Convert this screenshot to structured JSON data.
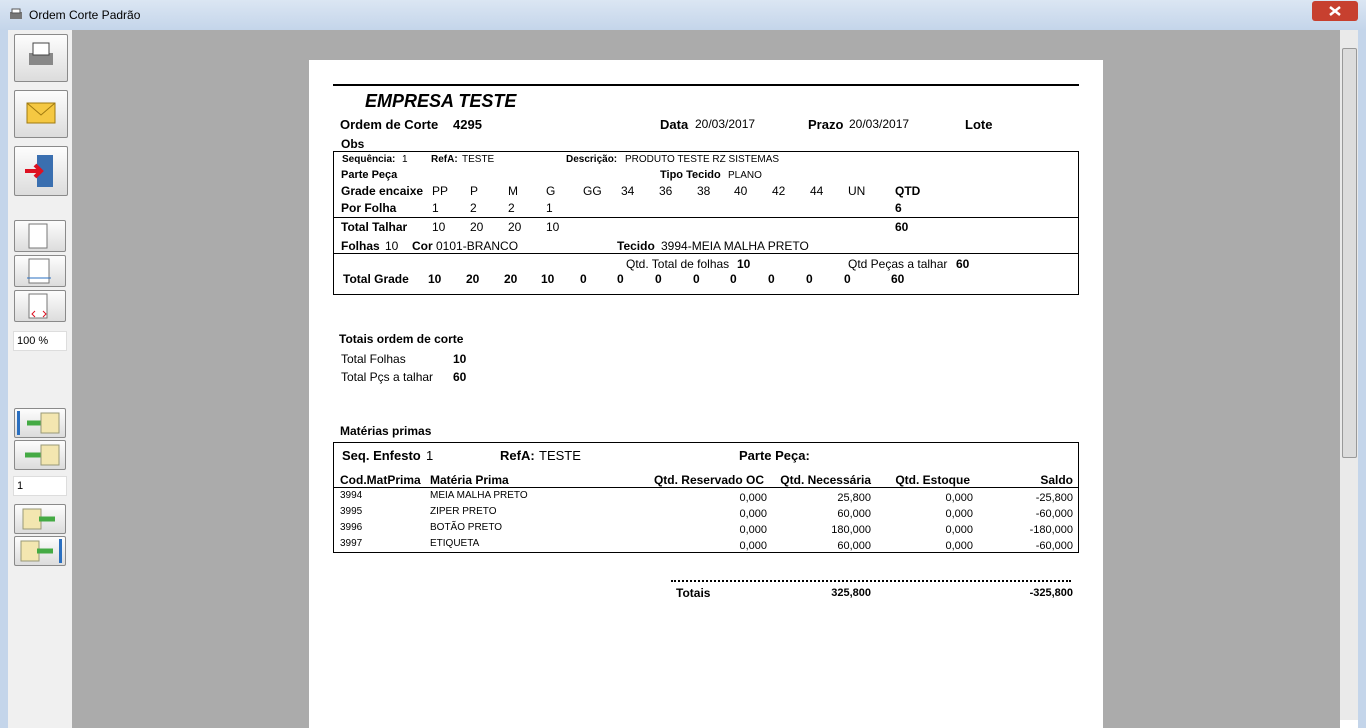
{
  "window": {
    "title": "Ordem Corte Padrão"
  },
  "toolbar": {
    "zoom": "100 %",
    "page": "1"
  },
  "report": {
    "company": "EMPRESA TESTE",
    "header": {
      "order_label": "Ordem de Corte",
      "order": 4295,
      "date_label": "Data",
      "date": "20/03/2017",
      "deadline_label": "Prazo",
      "deadline": "20/03/2017",
      "lot_label": "Lote",
      "obs_label": "Obs"
    },
    "grade": {
      "sequence_label": "Sequência:",
      "sequence": 1,
      "ref_label": "RefA:",
      "ref": "TESTE",
      "description_label": "Descrição:",
      "description": "PRODUTO TESTE RZ SISTEMAS",
      "part_label": "Parte Peça",
      "fabric_type_label": "Tipo Tecido",
      "fabric_type": "PLANO",
      "sizes_label": "Grade encaixe",
      "sizes": [
        "PP",
        "P",
        "M",
        "G",
        "GG",
        "34",
        "36",
        "38",
        "40",
        "42",
        "44",
        "UN"
      ],
      "qty_label": "QTD",
      "per_sheet_label": "Por Folha",
      "per_sheet": [
        1,
        2,
        2,
        1
      ],
      "per_sheet_qty": 6,
      "total_cut_label": "Total Talhar",
      "total_cut": [
        10,
        20,
        20,
        10
      ],
      "total_cut_qty": 60,
      "sheets_label": "Folhas",
      "sheets": 10,
      "color_label": "Cor",
      "color": "0101-BRANCO",
      "fabric_label": "Tecido",
      "fabric": "3994-MEIA MALHA PRETO",
      "total_sheets_label": "Qtd. Total de folhas",
      "total_sheets": 10,
      "total_pieces_label": "Qtd Peças a talhar",
      "total_pieces": 60,
      "total_grade_label": "Total Grade",
      "total_grade": [
        10,
        20,
        20,
        10,
        0,
        0,
        0,
        0,
        0,
        0,
        0,
        0
      ],
      "total_grade_qty": 60
    },
    "totals": {
      "title": "Totais ordem de corte",
      "sheets_label": "Total Folhas",
      "sheets": 10,
      "pieces_label": "Total Pçs a talhar",
      "pieces": 60
    },
    "materials": {
      "title": "Matérias primas",
      "seq_label": "Seq. Enfesto",
      "seq": 1,
      "ref_label": "RefA:",
      "ref": "TESTE",
      "part_label": "Parte Peça:",
      "columns": [
        "Cod.MatPrima",
        "Matéria Prima",
        "Qtd. Reservado OC",
        "Qtd. Necessária",
        "Qtd. Estoque",
        "Saldo"
      ],
      "rows": [
        [
          "3994",
          "MEIA MALHA PRETO",
          "0,000",
          "25,800",
          "0,000",
          "-25,800"
        ],
        [
          "3995",
          "ZIPER PRETO",
          "0,000",
          "60,000",
          "0,000",
          "-60,000"
        ],
        [
          "3996",
          "BOTÃO PRETO",
          "0,000",
          "180,000",
          "0,000",
          "-180,000"
        ],
        [
          "3997",
          "ETIQUETA",
          "0,000",
          "60,000",
          "0,000",
          "-60,000"
        ]
      ],
      "totals_label": "Totais",
      "total_needed": "325,800",
      "total_balance": "-325,800"
    }
  }
}
